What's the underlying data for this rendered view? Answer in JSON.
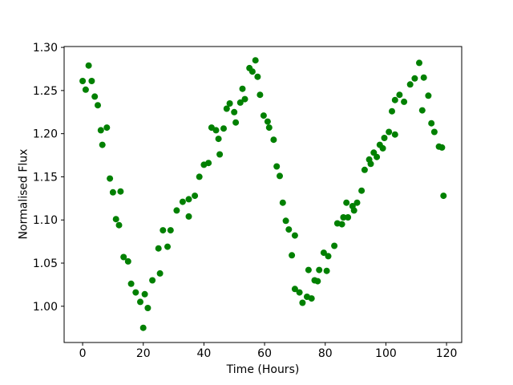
{
  "figure": {
    "background": "#ffffff",
    "spine_color": "#000000",
    "tick_color": "#000000"
  },
  "chart_data": {
    "type": "scatter",
    "title": "",
    "xlabel": "Time (Hours)",
    "ylabel": "Normalised Flux",
    "legend": null,
    "grid": false,
    "marker_color": "#008000",
    "marker_radius_px": 4,
    "xlim": [
      -6.1,
      125.0
    ],
    "ylim": [
      0.958,
      1.301
    ],
    "xticks": [
      0,
      20,
      40,
      60,
      80,
      100,
      120
    ],
    "xtick_labels": [
      "0",
      "20",
      "40",
      "60",
      "80",
      "100",
      "120"
    ],
    "yticks": [
      1.0,
      1.05,
      1.1,
      1.15,
      1.2,
      1.25,
      1.3
    ],
    "ytick_labels": [
      "1.00",
      "1.05",
      "1.10",
      "1.15",
      "1.20",
      "1.25",
      "1.30"
    ],
    "points": [
      [
        0,
        1.261
      ],
      [
        1,
        1.251
      ],
      [
        2,
        1.279
      ],
      [
        3,
        1.261
      ],
      [
        4,
        1.243
      ],
      [
        5,
        1.233
      ],
      [
        6,
        1.204
      ],
      [
        6.5,
        1.187
      ],
      [
        8,
        1.207
      ],
      [
        9,
        1.148
      ],
      [
        10,
        1.132
      ],
      [
        11,
        1.101
      ],
      [
        12,
        1.094
      ],
      [
        12.5,
        1.133
      ],
      [
        13.5,
        1.057
      ],
      [
        15,
        1.052
      ],
      [
        16,
        1.026
      ],
      [
        17.5,
        1.016
      ],
      [
        19,
        1.005
      ],
      [
        20,
        0.975
      ],
      [
        20.5,
        1.014
      ],
      [
        21.5,
        0.998
      ],
      [
        23,
        1.03
      ],
      [
        25,
        1.067
      ],
      [
        25.5,
        1.038
      ],
      [
        26.5,
        1.088
      ],
      [
        28,
        1.069
      ],
      [
        29,
        1.088
      ],
      [
        31,
        1.111
      ],
      [
        33,
        1.121
      ],
      [
        35,
        1.104
      ],
      [
        35,
        1.124
      ],
      [
        37,
        1.128
      ],
      [
        38.5,
        1.15
      ],
      [
        40,
        1.164
      ],
      [
        41.5,
        1.166
      ],
      [
        42.5,
        1.207
      ],
      [
        44,
        1.204
      ],
      [
        44.8,
        1.194
      ],
      [
        45.2,
        1.176
      ],
      [
        46.5,
        1.206
      ],
      [
        47.5,
        1.229
      ],
      [
        48.5,
        1.235
      ],
      [
        50,
        1.225
      ],
      [
        50.5,
        1.213
      ],
      [
        52,
        1.236
      ],
      [
        52.7,
        1.252
      ],
      [
        53.5,
        1.24
      ],
      [
        55,
        1.276
      ],
      [
        56,
        1.272
      ],
      [
        57,
        1.285
      ],
      [
        57.7,
        1.266
      ],
      [
        58.5,
        1.245
      ],
      [
        59.7,
        1.221
      ],
      [
        61,
        1.214
      ],
      [
        61.5,
        1.207
      ],
      [
        63,
        1.193
      ],
      [
        64,
        1.162
      ],
      [
        65,
        1.151
      ],
      [
        66,
        1.12
      ],
      [
        67,
        1.099
      ],
      [
        68,
        1.089
      ],
      [
        69,
        1.059
      ],
      [
        70,
        1.02
      ],
      [
        70,
        1.082
      ],
      [
        71.5,
        1.016
      ],
      [
        72.5,
        1.004
      ],
      [
        74,
        1.011
      ],
      [
        74.5,
        1.042
      ],
      [
        75.5,
        1.009
      ],
      [
        76.5,
        1.03
      ],
      [
        77.5,
        1.029
      ],
      [
        78,
        1.042
      ],
      [
        79.5,
        1.062
      ],
      [
        80.5,
        1.041
      ],
      [
        81,
        1.058
      ],
      [
        83,
        1.07
      ],
      [
        84,
        1.096
      ],
      [
        85.5,
        1.095
      ],
      [
        86,
        1.103
      ],
      [
        87,
        1.12
      ],
      [
        87.5,
        1.103
      ],
      [
        89,
        1.116
      ],
      [
        89.5,
        1.111
      ],
      [
        90.5,
        1.12
      ],
      [
        92,
        1.134
      ],
      [
        93,
        1.158
      ],
      [
        94.5,
        1.17
      ],
      [
        95,
        1.165
      ],
      [
        96,
        1.178
      ],
      [
        97,
        1.173
      ],
      [
        98,
        1.187
      ],
      [
        99,
        1.183
      ],
      [
        99.5,
        1.195
      ],
      [
        101,
        1.202
      ],
      [
        102,
        1.226
      ],
      [
        103,
        1.199
      ],
      [
        103,
        1.239
      ],
      [
        104.5,
        1.245
      ],
      [
        106,
        1.237
      ],
      [
        108,
        1.257
      ],
      [
        109.5,
        1.264
      ],
      [
        111,
        1.282
      ],
      [
        112,
        1.227
      ],
      [
        112.5,
        1.265
      ],
      [
        114,
        1.244
      ],
      [
        115,
        1.212
      ],
      [
        116,
        1.202
      ],
      [
        117.5,
        1.185
      ],
      [
        118.5,
        1.184
      ],
      [
        119,
        1.128
      ]
    ]
  }
}
